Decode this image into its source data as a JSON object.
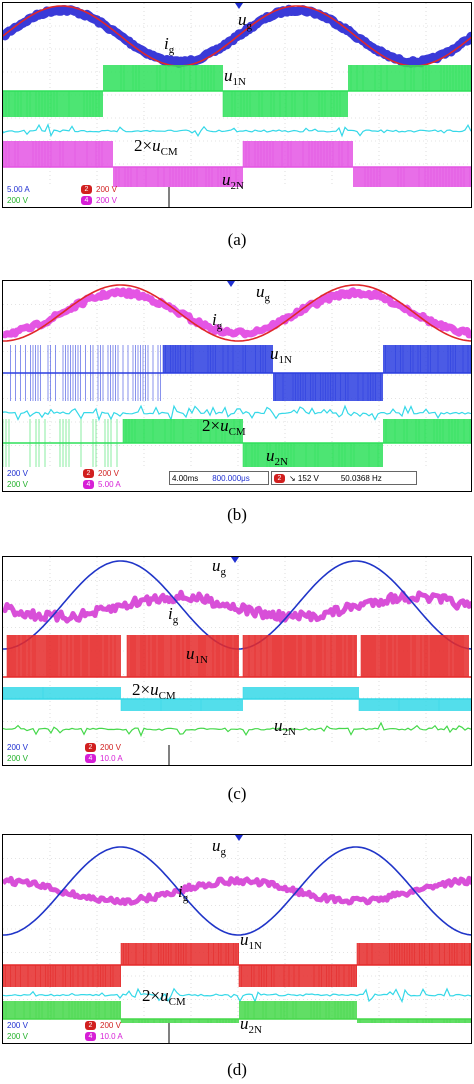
{
  "chart_data": [
    {
      "type": "oscilloscope",
      "caption": "(a)",
      "signals": [
        "u_g",
        "i_g",
        "u_1N",
        "2×u_CM",
        "u_2N"
      ],
      "annotations": {
        "ug": "u",
        "ug_sub": "g",
        "ig": "i",
        "ig_sub": "g",
        "u1n": "u",
        "u1n_sub": "1N",
        "ucm_pre": "2×",
        "ucm": "u",
        "ucm_sub": "CM",
        "u2n": "u",
        "u2n_sub": "2N"
      },
      "status": {
        "ch1": {
          "num": "",
          "value": "5.00 A",
          "color": "#1f2fd1"
        },
        "ch2": {
          "num": "2",
          "value": "200 V",
          "color": "#d11f1f"
        },
        "ch3": {
          "num": "",
          "value": "200 V",
          "color": "#22b02a"
        },
        "ch4": {
          "num": "4",
          "value": "200 V",
          "color": "#d61fd6"
        }
      },
      "colors": {
        "ug": "#e0282a",
        "ig": "#3a3ad8",
        "u1n": "#2ee05a",
        "ucm": "#35d8e8",
        "u2n": "#e455e4"
      }
    },
    {
      "type": "oscilloscope",
      "caption": "(b)",
      "signals": [
        "u_g",
        "i_g",
        "u_1N",
        "2×u_CM",
        "u_2N"
      ],
      "annotations": {
        "ug": "u",
        "ug_sub": "g",
        "ig": "i",
        "ig_sub": "g",
        "u1n": "u",
        "u1n_sub": "1N",
        "ucm_pre": "2×",
        "ucm": "u",
        "ucm_sub": "CM",
        "u2n": "u",
        "u2n_sub": "2N"
      },
      "status": {
        "ch1": {
          "num": "",
          "value": "200 V",
          "color": "#1f2fd1"
        },
        "ch2": {
          "num": "2",
          "value": "200 V",
          "color": "#d11f1f"
        },
        "ch3": {
          "num": "",
          "value": "200 V",
          "color": "#22b02a"
        },
        "ch4": {
          "num": "4",
          "value": "5.00 A",
          "color": "#d61fd6"
        },
        "timebase": "4.00ms",
        "delay": "800.000μs",
        "trig_ch": "2",
        "trig_level": "↘ 152 V",
        "freq": "50.0368 Hz"
      },
      "colors": {
        "ug": "#e0282a",
        "ig": "#e455e4",
        "u1n": "#2b3ee0",
        "ucm": "#35d8e8",
        "u2n": "#2ee05a"
      }
    },
    {
      "type": "oscilloscope",
      "caption": "(c)",
      "signals": [
        "u_g",
        "i_g",
        "u_1N",
        "2×u_CM",
        "u_2N"
      ],
      "annotations": {
        "ug": "u",
        "ug_sub": "g",
        "ig": "i",
        "ig_sub": "g",
        "u1n": "u",
        "u1n_sub": "1N",
        "ucm_pre": "2×",
        "ucm": "u",
        "ucm_sub": "CM",
        "u2n": "u",
        "u2n_sub": "2N"
      },
      "status": {
        "ch1": {
          "num": "",
          "value": "200 V",
          "color": "#1f2fd1"
        },
        "ch2": {
          "num": "2",
          "value": "200 V",
          "color": "#d11f1f"
        },
        "ch3": {
          "num": "",
          "value": "200 V",
          "color": "#22b02a"
        },
        "ch4": {
          "num": "4",
          "value": "10.0 A",
          "color": "#d61fd6"
        }
      },
      "colors": {
        "ug": "#2035c8",
        "ig": "#d84fd8",
        "u1n": "#e52a2a",
        "ucm": "#35d8e8",
        "u2n": "#45d84a"
      }
    },
    {
      "type": "oscilloscope",
      "caption": "(d)",
      "signals": [
        "u_g",
        "i_g",
        "u_1N",
        "2×u_CM",
        "u_2N"
      ],
      "annotations": {
        "ug": "u",
        "ug_sub": "g",
        "ig": "i",
        "ig_sub": "g",
        "u1n": "u",
        "u1n_sub": "1N",
        "ucm_pre": "2×",
        "ucm": "u",
        "ucm_sub": "CM",
        "u2n": "u",
        "u2n_sub": "2N"
      },
      "status": {
        "ch1": {
          "num": "",
          "value": "200 V",
          "color": "#1f2fd1"
        },
        "ch2": {
          "num": "2",
          "value": "200 V",
          "color": "#d11f1f"
        },
        "ch3": {
          "num": "",
          "value": "200 V",
          "color": "#22b02a"
        },
        "ch4": {
          "num": "4",
          "value": "10.0 A",
          "color": "#d61fd6"
        }
      },
      "colors": {
        "ug": "#2035c8",
        "ig": "#d84fd8",
        "u1n": "#e52a2a",
        "ucm": "#35d8e8",
        "u2n": "#45d84a"
      }
    }
  ]
}
